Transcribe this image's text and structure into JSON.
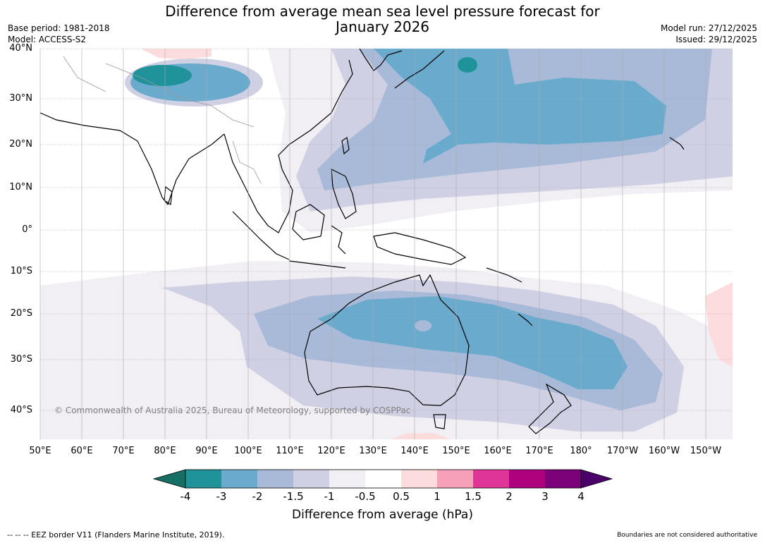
{
  "title": "Difference from average mean sea level pressure forecast for January 2026",
  "title_line1": "Difference from average mean sea level pressure forecast for",
  "title_line2": "January 2026",
  "base_period": "Base period: 1981-2018",
  "model": "Model: ACCESS-S2",
  "model_run": "Model run: 27/12/2025",
  "issued": "Issued: 29/12/2025",
  "latitude_labels": [
    "40°N",
    "30°N",
    "20°N",
    "10°N",
    "0°",
    "10°S",
    "20°S",
    "30°S",
    "40°S"
  ],
  "longitude_labels": [
    "50°E",
    "60°E",
    "70°E",
    "80°E",
    "90°E",
    "100°E",
    "110°E",
    "120°E",
    "130°E",
    "140°E",
    "150°E",
    "160°E",
    "170°E",
    "180°",
    "170°W",
    "160°W",
    "150°W"
  ],
  "copyright": "© Commonwealth of Australia 2025, Bureau of Meteorology, supported by COSPPac",
  "colorbar": {
    "title": "Difference from average (hPa)",
    "ticks": [
      "-4",
      "-3",
      "-2",
      "-1.5",
      "-1",
      "-0.5",
      "0.5",
      "1",
      "1.5",
      "2",
      "3",
      "4"
    ],
    "colors": [
      "#156f64",
      "#1f9399",
      "#6aabcd",
      "#a8bad8",
      "#d0d0e4",
      "#f1eef4",
      "#ffffff",
      "#fcdcdc",
      "#f7a0b9",
      "#df3598",
      "#ad017e",
      "#7a0177",
      "#4a016a"
    ]
  },
  "legend_note": "-- -- -- EEZ border V11 (Flanders Marine Institute, 2019).",
  "disclaimer": "Boundaries are not considered authoritative"
}
